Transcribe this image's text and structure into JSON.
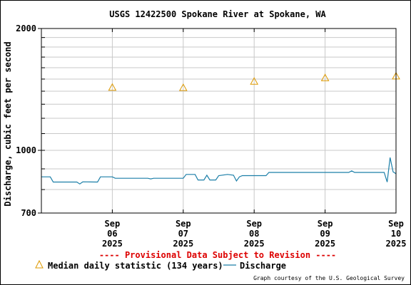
{
  "chart_data": {
    "type": "line",
    "title": "USGS 12422500 Spokane River at Spokane, WA",
    "ylabel": "Discharge, cubic feet per second",
    "xlabel": "",
    "y_scale": "log",
    "ylim": [
      700,
      2000
    ],
    "y_ticks": [
      {
        "value": 700,
        "label": "700"
      },
      {
        "value": 1000,
        "label": "1000"
      },
      {
        "value": 2000,
        "label": "2000"
      }
    ],
    "x_ticks": [
      {
        "value": "2025-09-06",
        "lines": [
          "Sep",
          "06",
          "2025"
        ]
      },
      {
        "value": "2025-09-07",
        "lines": [
          "Sep",
          "07",
          "2025"
        ]
      },
      {
        "value": "2025-09-08",
        "lines": [
          "Sep",
          "08",
          "2025"
        ]
      },
      {
        "value": "2025-09-09",
        "lines": [
          "Sep",
          "09",
          "2025"
        ]
      },
      {
        "value": "2025-09-10",
        "lines": [
          "Sep",
          "10",
          "2025"
        ]
      }
    ],
    "xlim": [
      "2025-09-05 12:00",
      "2025-09-10 12:00"
    ],
    "grid": true,
    "notice": "---- Provisional Data Subject to Revision ----",
    "credit": "Graph courtesy of the U.S. Geological Survey",
    "legend_position": "bottom",
    "series": [
      {
        "name": "Median daily statistic (134 years)",
        "type": "scatter",
        "marker": "triangle",
        "color": "#dd9900",
        "points": [
          {
            "x": "2025-09-06 12:00",
            "y": 1430
          },
          {
            "x": "2025-09-07 12:00",
            "y": 1428
          },
          {
            "x": "2025-09-08 12:00",
            "y": 1480
          },
          {
            "x": "2025-09-09 12:00",
            "y": 1510
          },
          {
            "x": "2025-09-10 12:00",
            "y": 1525
          }
        ]
      },
      {
        "name": "Discharge",
        "type": "line",
        "color": "#1c7fa8",
        "points": [
          {
            "x": "2025-09-05 12:00",
            "y": 860
          },
          {
            "x": "2025-09-05 15:00",
            "y": 860
          },
          {
            "x": "2025-09-05 16:00",
            "y": 835
          },
          {
            "x": "2025-09-06 00:00",
            "y": 835
          },
          {
            "x": "2025-09-06 01:00",
            "y": 826
          },
          {
            "x": "2025-09-06 02:00",
            "y": 836
          },
          {
            "x": "2025-09-06 07:00",
            "y": 835
          },
          {
            "x": "2025-09-06 08:00",
            "y": 860
          },
          {
            "x": "2025-09-06 12:00",
            "y": 860
          },
          {
            "x": "2025-09-06 13:00",
            "y": 853
          },
          {
            "x": "2025-09-07 00:00",
            "y": 853
          },
          {
            "x": "2025-09-07 01:00",
            "y": 850
          },
          {
            "x": "2025-09-07 02:00",
            "y": 853
          },
          {
            "x": "2025-09-07 12:00",
            "y": 853
          },
          {
            "x": "2025-09-07 13:00",
            "y": 872
          },
          {
            "x": "2025-09-07 16:00",
            "y": 872
          },
          {
            "x": "2025-09-07 17:00",
            "y": 845
          },
          {
            "x": "2025-09-07 19:00",
            "y": 845
          },
          {
            "x": "2025-09-07 20:00",
            "y": 868
          },
          {
            "x": "2025-09-07 21:00",
            "y": 845
          },
          {
            "x": "2025-09-07 23:00",
            "y": 845
          },
          {
            "x": "2025-09-08 00:00",
            "y": 866
          },
          {
            "x": "2025-09-08 03:00",
            "y": 872
          },
          {
            "x": "2025-09-08 05:00",
            "y": 868
          },
          {
            "x": "2025-09-08 06:00",
            "y": 840
          },
          {
            "x": "2025-09-08 07:00",
            "y": 860
          },
          {
            "x": "2025-09-08 08:00",
            "y": 866
          },
          {
            "x": "2025-09-08 16:00",
            "y": 866
          },
          {
            "x": "2025-09-08 17:00",
            "y": 882
          },
          {
            "x": "2025-09-09 20:00",
            "y": 882
          },
          {
            "x": "2025-09-09 21:00",
            "y": 890
          },
          {
            "x": "2025-09-09 22:00",
            "y": 882
          },
          {
            "x": "2025-09-10 08:00",
            "y": 882
          },
          {
            "x": "2025-09-10 09:00",
            "y": 835
          },
          {
            "x": "2025-09-10 10:00",
            "y": 960
          },
          {
            "x": "2025-09-10 11:00",
            "y": 885
          },
          {
            "x": "2025-09-10 12:00",
            "y": 875
          }
        ]
      }
    ]
  },
  "palette": {
    "axis": "#000000",
    "grid": "#c8c8c8",
    "notice": "#dd0000"
  }
}
